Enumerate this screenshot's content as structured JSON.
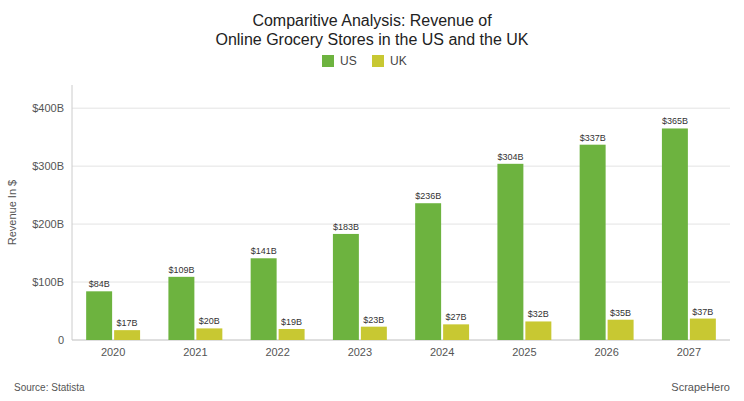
{
  "chart_data": {
    "type": "bar",
    "title": "Comparitive Analysis: Revenue of\nOnline Grocery Stores in the US and the UK",
    "y_label": "Revenue In $",
    "categories": [
      "2020",
      "2021",
      "2022",
      "2023",
      "2024",
      "2025",
      "2026",
      "2027"
    ],
    "series": [
      {
        "name": "US",
        "color": "#6db33f",
        "values": [
          84,
          109,
          141,
          183,
          236,
          304,
          337,
          365
        ],
        "value_labels": [
          "$84B",
          "$109B",
          "$141B",
          "$183B",
          "$236B",
          "$304B",
          "$337B",
          "$365B"
        ]
      },
      {
        "name": "UK",
        "color": "#c8c832",
        "values": [
          17,
          20,
          19,
          23,
          27,
          32,
          35,
          37
        ],
        "value_labels": [
          "$17B",
          "$20B",
          "$19B",
          "$23B",
          "$27B",
          "$32B",
          "$35B",
          "$37B"
        ]
      }
    ],
    "ylim": [
      0,
      440
    ],
    "yticks": [
      0,
      {
        "value": 100,
        "label": "$100B"
      },
      {
        "value": 200,
        "label": "$200B"
      },
      {
        "value": 300,
        "label": "$300B"
      },
      {
        "value": 400,
        "label": "$400B"
      }
    ],
    "grid": true,
    "legend": "top",
    "data_labels": true,
    "annotations": [
      "Source: Statista",
      "ScrapeHero"
    ]
  }
}
